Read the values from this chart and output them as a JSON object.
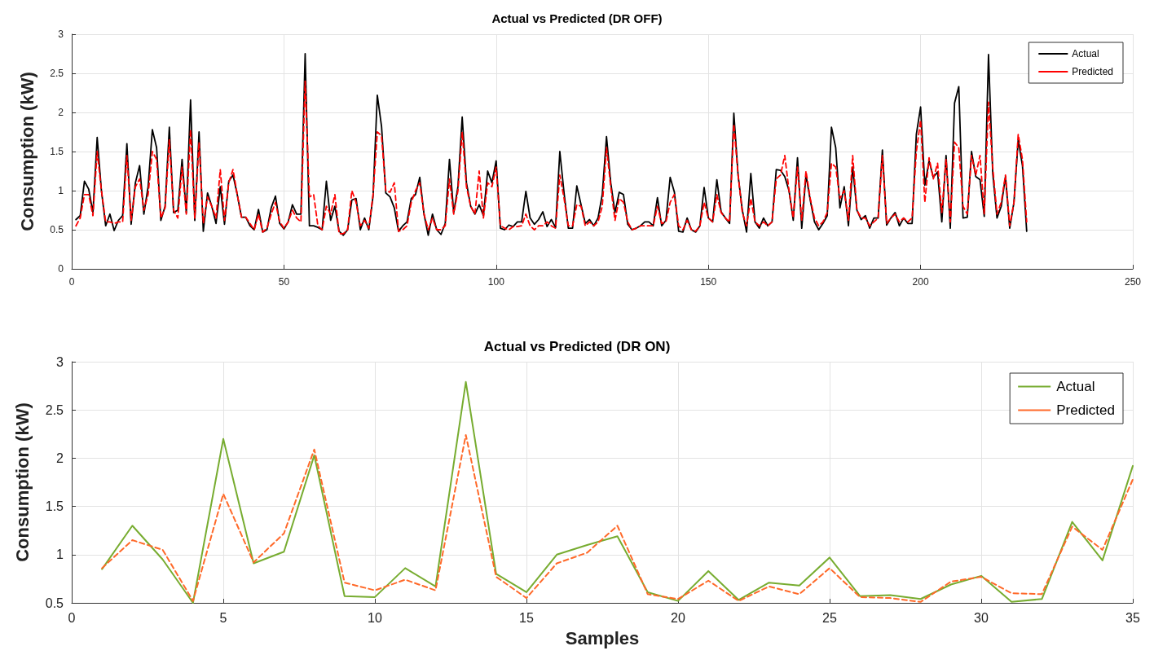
{
  "chart_data": [
    {
      "type": "line",
      "title": "Actual vs Predicted (DR OFF)",
      "ylabel": "Consumption (kW)",
      "x": [
        1,
        2,
        3,
        4,
        5,
        6,
        7,
        8,
        9,
        10,
        11,
        12,
        13,
        14,
        15,
        16,
        17,
        18,
        19,
        20,
        21,
        22,
        23,
        24,
        25,
        26,
        27,
        28,
        29,
        30,
        31,
        32,
        33,
        34,
        35,
        36,
        37,
        38,
        39,
        40,
        41,
        42,
        43,
        44,
        45,
        46,
        47,
        48,
        49,
        50,
        51,
        52,
        53,
        54,
        55,
        56,
        57,
        58,
        59,
        60,
        61,
        62,
        63,
        64,
        65,
        66,
        67,
        68,
        69,
        70,
        71,
        72,
        73,
        74,
        75,
        76,
        77,
        78,
        79,
        80,
        81,
        82,
        83,
        84,
        85,
        86,
        87,
        88,
        89,
        90,
        91,
        92,
        93,
        94,
        95,
        96,
        97,
        98,
        99,
        100,
        101,
        102,
        103,
        104,
        105,
        106,
        107,
        108,
        109,
        110,
        111,
        112,
        113,
        114,
        115,
        116,
        117,
        118,
        119,
        120,
        121,
        122,
        123,
        124,
        125,
        126,
        127,
        128,
        129,
        130,
        131,
        132,
        133,
        134,
        135,
        136,
        137,
        138,
        139,
        140,
        141,
        142,
        143,
        144,
        145,
        146,
        147,
        148,
        149,
        150,
        151,
        152,
        153,
        154,
        155,
        156,
        157,
        158,
        159,
        160,
        161,
        162,
        163,
        164,
        165,
        166,
        167,
        168,
        169,
        170,
        171,
        172,
        173,
        174,
        175,
        176,
        177,
        178,
        179,
        180,
        181,
        182,
        183,
        184,
        185,
        186,
        187,
        188,
        189,
        190,
        191,
        192,
        193,
        194,
        195,
        196,
        197,
        198,
        199,
        200,
        201,
        202,
        203,
        204,
        205,
        206,
        207,
        208,
        209,
        210,
        211,
        212,
        213,
        214,
        215,
        216,
        217,
        218,
        219,
        220,
        221,
        222,
        223,
        224,
        225
      ],
      "series": [
        {
          "name": "Actual",
          "color": "#000000",
          "line_style": "solid",
          "values": [
            0.63,
            0.68,
            1.12,
            1.02,
            0.72,
            1.68,
            1.0,
            0.55,
            0.7,
            0.49,
            0.62,
            0.68,
            1.6,
            0.57,
            1.1,
            1.32,
            0.7,
            1.05,
            1.78,
            1.55,
            0.62,
            0.8,
            1.81,
            0.72,
            0.75,
            1.4,
            0.72,
            2.16,
            0.62,
            1.75,
            0.48,
            0.97,
            0.8,
            0.58,
            1.05,
            0.57,
            1.12,
            1.2,
            0.95,
            0.66,
            0.66,
            0.55,
            0.5,
            0.76,
            0.47,
            0.5,
            0.78,
            0.93,
            0.58,
            0.51,
            0.6,
            0.82,
            0.7,
            0.7,
            2.75,
            0.55,
            0.55,
            0.53,
            0.5,
            1.12,
            0.62,
            0.8,
            0.48,
            0.43,
            0.5,
            0.88,
            0.9,
            0.5,
            0.65,
            0.5,
            0.93,
            2.22,
            1.82,
            0.97,
            0.92,
            0.78,
            0.48,
            0.55,
            0.6,
            0.9,
            0.95,
            1.17,
            0.7,
            0.43,
            0.7,
            0.5,
            0.44,
            0.58,
            1.4,
            0.72,
            1.05,
            1.94,
            1.1,
            0.8,
            0.7,
            0.82,
            0.68,
            1.25,
            1.1,
            1.38,
            0.52,
            0.5,
            0.56,
            0.54,
            0.6,
            0.6,
            0.99,
            0.65,
            0.57,
            0.63,
            0.73,
            0.54,
            0.63,
            0.53,
            1.5,
            0.97,
            0.52,
            0.52,
            1.06,
            0.82,
            0.58,
            0.63,
            0.55,
            0.65,
            0.95,
            1.69,
            1.1,
            0.72,
            0.98,
            0.95,
            0.57,
            0.5,
            0.52,
            0.55,
            0.6,
            0.6,
            0.55,
            0.91,
            0.55,
            0.62,
            1.17,
            0.98,
            0.48,
            0.47,
            0.65,
            0.5,
            0.47,
            0.55,
            1.04,
            0.65,
            0.6,
            1.14,
            0.73,
            0.65,
            0.58,
            1.99,
            1.2,
            0.75,
            0.47,
            1.22,
            0.6,
            0.52,
            0.65,
            0.55,
            0.6,
            1.27,
            1.26,
            1.18,
            1.0,
            0.62,
            1.42,
            0.52,
            1.2,
            0.88,
            0.6,
            0.5,
            0.58,
            0.68,
            1.81,
            1.55,
            0.78,
            1.05,
            0.55,
            1.3,
            0.75,
            0.63,
            0.68,
            0.52,
            0.65,
            0.65,
            1.52,
            0.56,
            0.65,
            0.72,
            0.55,
            0.65,
            0.58,
            0.58,
            1.72,
            2.07,
            1.07,
            1.38,
            1.17,
            1.24,
            0.6,
            1.45,
            0.52,
            2.12,
            2.33,
            0.65,
            0.66,
            1.5,
            1.18,
            1.14,
            0.67,
            2.74,
            1.22,
            0.65,
            0.8,
            1.18,
            0.52,
            0.85,
            1.65,
            1.32,
            0.48
          ]
        },
        {
          "name": "Predicted",
          "color": "#ff0000",
          "line_style": "dashed",
          "values": [
            0.55,
            0.65,
            0.95,
            0.95,
            0.68,
            1.5,
            1.0,
            0.6,
            0.6,
            0.58,
            0.6,
            0.6,
            1.45,
            0.62,
            1.05,
            1.15,
            0.75,
            0.95,
            1.5,
            1.4,
            0.65,
            0.78,
            1.65,
            0.75,
            0.65,
            1.3,
            0.7,
            1.78,
            0.65,
            1.62,
            0.58,
            0.92,
            0.8,
            0.65,
            1.27,
            0.62,
            1.1,
            1.27,
            0.95,
            0.66,
            0.66,
            0.58,
            0.5,
            0.7,
            0.47,
            0.52,
            0.7,
            0.85,
            0.6,
            0.52,
            0.6,
            0.75,
            0.65,
            0.6,
            2.4,
            0.92,
            0.95,
            0.55,
            0.5,
            0.8,
            0.7,
            0.95,
            0.45,
            0.45,
            0.5,
            1.0,
            0.85,
            0.55,
            0.62,
            0.52,
            0.95,
            1.75,
            1.7,
            1.0,
            0.98,
            1.1,
            0.48,
            0.5,
            0.55,
            0.85,
            1.0,
            1.1,
            0.7,
            0.5,
            0.65,
            0.5,
            0.5,
            0.55,
            1.15,
            0.7,
            1.0,
            1.75,
            1.05,
            0.8,
            0.7,
            1.25,
            0.65,
            1.1,
            1.05,
            1.3,
            0.55,
            0.52,
            0.5,
            0.54,
            0.54,
            0.55,
            0.7,
            0.55,
            0.5,
            0.55,
            0.55,
            0.6,
            0.55,
            0.52,
            1.2,
            0.9,
            0.55,
            0.55,
            0.82,
            0.8,
            0.55,
            0.6,
            0.55,
            0.6,
            0.8,
            1.55,
            1.05,
            0.62,
            0.9,
            0.85,
            0.6,
            0.5,
            0.52,
            0.55,
            0.55,
            0.55,
            0.55,
            0.8,
            0.58,
            0.6,
            0.85,
            0.95,
            0.55,
            0.5,
            0.62,
            0.5,
            0.48,
            0.55,
            0.85,
            0.65,
            0.6,
            0.95,
            0.72,
            0.65,
            0.6,
            1.85,
            1.2,
            0.72,
            0.55,
            0.9,
            0.6,
            0.55,
            0.6,
            0.55,
            0.6,
            1.15,
            1.2,
            1.45,
            1.0,
            0.65,
            1.3,
            0.62,
            1.25,
            0.9,
            0.65,
            0.55,
            0.6,
            0.72,
            1.35,
            1.3,
            0.9,
            1.0,
            0.62,
            1.45,
            0.75,
            0.65,
            0.65,
            0.55,
            0.6,
            0.65,
            1.45,
            0.58,
            0.65,
            0.7,
            0.6,
            0.65,
            0.6,
            0.65,
            1.5,
            1.9,
            0.85,
            1.42,
            1.15,
            1.35,
            0.72,
            1.4,
            0.6,
            1.62,
            1.55,
            0.8,
            0.7,
            1.45,
            1.2,
            1.45,
            0.7,
            2.13,
            1.3,
            0.7,
            0.85,
            1.2,
            0.55,
            0.85,
            1.72,
            1.4,
            0.6
          ]
        }
      ],
      "xlim": [
        0,
        250
      ],
      "xticks": [
        0,
        50,
        100,
        150,
        200,
        250
      ],
      "ylim": [
        0,
        3
      ],
      "yticks": [
        0,
        0.5,
        1,
        1.5,
        2,
        2.5,
        3
      ],
      "grid": true,
      "legend": "top right",
      "marker": "none"
    },
    {
      "type": "line",
      "title": "Actual vs Predicted (DR ON)",
      "xlabel": "Samples",
      "ylabel": "Consumption (kW)",
      "x": [
        1,
        2,
        3,
        4,
        5,
        6,
        7,
        8,
        9,
        10,
        11,
        12,
        13,
        14,
        15,
        16,
        17,
        18,
        19,
        20,
        21,
        22,
        23,
        24,
        25,
        26,
        27,
        28,
        29,
        30,
        31,
        32,
        33,
        34,
        35
      ],
      "series": [
        {
          "name": "Actual",
          "color": "#77ac30",
          "line_style": "solid",
          "values": [
            0.85,
            1.3,
            0.95,
            0.5,
            2.2,
            0.91,
            1.03,
            2.03,
            0.57,
            0.56,
            0.86,
            0.67,
            2.79,
            0.8,
            0.61,
            1.0,
            1.1,
            1.19,
            0.61,
            0.52,
            0.83,
            0.53,
            0.71,
            0.68,
            0.97,
            0.57,
            0.58,
            0.54,
            0.69,
            0.78,
            0.51,
            0.54,
            1.34,
            0.94,
            1.92
          ]
        },
        {
          "name": "Predicted",
          "color": "#ff6929",
          "line_style": "dashed",
          "values": [
            0.86,
            1.15,
            1.05,
            0.52,
            1.63,
            0.92,
            1.22,
            2.09,
            0.71,
            0.63,
            0.74,
            0.63,
            2.24,
            0.77,
            0.55,
            0.91,
            1.02,
            1.3,
            0.59,
            0.54,
            0.73,
            0.52,
            0.67,
            0.59,
            0.86,
            0.56,
            0.55,
            0.51,
            0.72,
            0.77,
            0.6,
            0.59,
            1.29,
            1.05,
            1.78
          ]
        }
      ],
      "xlim": [
        0,
        35
      ],
      "xticks": [
        0,
        5,
        10,
        15,
        20,
        25,
        30,
        35
      ],
      "ylim": [
        0.5,
        3
      ],
      "yticks": [
        0.5,
        1,
        1.5,
        2,
        2.5,
        3
      ],
      "grid": true,
      "legend": "top right",
      "marker": "none"
    }
  ]
}
